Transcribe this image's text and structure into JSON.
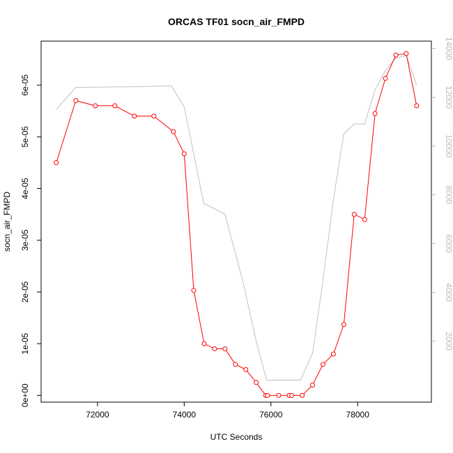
{
  "chart_data": {
    "type": "line",
    "title": "ORCAS TF01 socn_air_FMPD",
    "xlabel": "UTC Seconds",
    "ylabel": "socn_air_FMPD",
    "ylabel_right": "",
    "xlim": [
      70700,
      79700
    ],
    "ylim": [
      -1.3e-06,
      6.85e-05
    ],
    "ylim_right": [
      -500,
      14300
    ],
    "x_ticks": [
      {
        "value": 72000,
        "label": "72000"
      },
      {
        "value": 74000,
        "label": "74000"
      },
      {
        "value": 76000,
        "label": "76000"
      },
      {
        "value": 78000,
        "label": "78000"
      }
    ],
    "y_ticks": [
      {
        "value": 0,
        "label": "0e+00"
      },
      {
        "value": 1e-05,
        "label": "1e-05"
      },
      {
        "value": 2e-05,
        "label": "2e-05"
      },
      {
        "value": 3e-05,
        "label": "3e-05"
      },
      {
        "value": 4e-05,
        "label": "4e-05"
      },
      {
        "value": 5e-05,
        "label": "5e-05"
      },
      {
        "value": 6e-05,
        "label": "6e-05"
      }
    ],
    "y_ticks_right": [
      {
        "value": 2000,
        "label": "2000"
      },
      {
        "value": 4000,
        "label": "4000"
      },
      {
        "value": 6000,
        "label": "6000"
      },
      {
        "value": 8000,
        "label": "8000"
      },
      {
        "value": 10000,
        "label": "10000"
      },
      {
        "value": 12000,
        "label": "12000"
      },
      {
        "value": 14000,
        "label": "14000"
      }
    ],
    "series": [
      {
        "color": "#ff0000",
        "axis": "left",
        "marker": "circle",
        "x": [
          71050,
          71500,
          71950,
          72400,
          72850,
          73300,
          73750,
          74000,
          74220,
          74460,
          74700,
          74940,
          75180,
          75420,
          75660,
          75880,
          75920,
          76180,
          76420,
          76480,
          76720,
          76960,
          77200,
          77440,
          77680,
          77920,
          78160,
          78400,
          78640,
          78880,
          79120,
          79360
        ],
        "y": [
          4.5e-05,
          5.7e-05,
          5.6e-05,
          5.6e-05,
          5.4e-05,
          5.4e-05,
          5.1e-05,
          4.67e-05,
          2.03e-05,
          1e-05,
          9e-06,
          9e-06,
          6e-06,
          5e-06,
          2.5e-06,
          0,
          0,
          0,
          0,
          0,
          0,
          2e-06,
          6e-06,
          8e-06,
          1.37e-05,
          3.5e-05,
          3.4e-05,
          5.45e-05,
          6.13e-05,
          6.58e-05,
          6.61e-05,
          5.6e-05
        ]
      },
      {
        "color": "#c0c0c0",
        "axis": "right",
        "marker": "none",
        "x": [
          71050,
          71500,
          72400,
          72800,
          73300,
          73700,
          74000,
          74450,
          74940,
          75360,
          75660,
          75900,
          76680,
          76960,
          77200,
          77440,
          77680,
          77920,
          78160,
          78400,
          78640,
          78880,
          79120,
          79360
        ],
        "y": [
          11500,
          12400,
          12420,
          12430,
          12450,
          12470,
          11600,
          7650,
          7200,
          4400,
          2000,
          400,
          400,
          1500,
          4500,
          7800,
          10500,
          10900,
          10900,
          12300,
          13100,
          13600,
          13700,
          12500
        ]
      }
    ]
  }
}
